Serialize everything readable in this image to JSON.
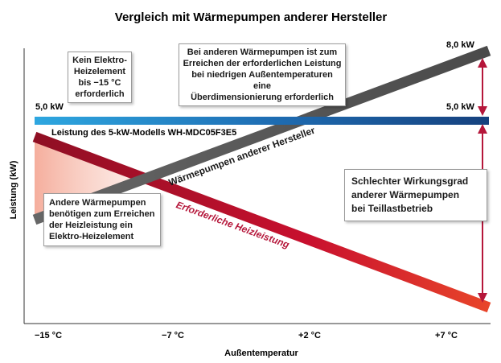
{
  "chart_data": {
    "type": "line",
    "title": "Vergleich mit Wärmepumpen anderer Hersteller",
    "xlabel": "Außentemperatur",
    "ylabel": "Leistung (kW)",
    "x_ticks": [
      "−15 °C",
      "−7 °C",
      "+2 °C",
      "+7 °C"
    ],
    "series": [
      {
        "name": "Leistung des 5-kW-Modells WH-MDC05F3E5",
        "color": "#1f6fb5",
        "values": [
          5.0,
          5.0,
          5.0,
          5.0
        ]
      },
      {
        "name": "Wärmepumpen anderer Hersteller",
        "color": "#5a5a5a",
        "values": [
          2.2,
          null,
          null,
          8.0
        ]
      },
      {
        "name": "Erforderliche Heizleistung",
        "color": "#c8102e",
        "values": [
          4.6,
          null,
          null,
          0.2
        ]
      }
    ],
    "annotations": {
      "left_5kw": "5,0 kW",
      "right_5kw": "5,0 kW",
      "right_8kw": "8,0 kW",
      "callout_elektro": [
        "Kein Elektro-",
        "Heizelement",
        "bis −15 °C",
        "erforderlich"
      ],
      "callout_overdim": [
        "Bei anderen Wärmepumpen ist zum",
        "Erreichen der erforderlichen Leistung",
        "bei niedrigen Außentemperaturen eine",
        "Überdimensionierung erforderlich"
      ],
      "callout_heizelement": [
        "Andere Wärmepumpen",
        "benötigen zum Erreichen",
        "der Heizleistung ein",
        "Elektro-Heizelement"
      ],
      "callout_wirkungsgrad": [
        "Schlechter Wirkungsgrad",
        "anderer Wärmepumpen",
        "bei Teillastbetrieb"
      ]
    }
  },
  "colors": {
    "accent_red": "#b5163a",
    "blue_line": "#1f6fb5",
    "grey_line": "#555555"
  }
}
